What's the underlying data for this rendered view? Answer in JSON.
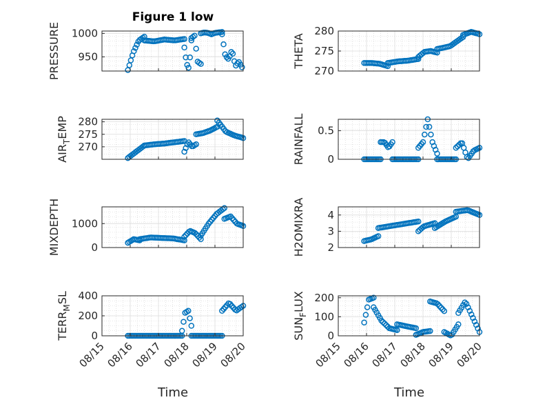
{
  "figure": {
    "title": "Figure 1 low",
    "marker_color": "#0072BD",
    "x_axis_label": "Time",
    "x_tick_labels": [
      "08/15",
      "08/16",
      "08/17",
      "08/18",
      "08/19",
      "08/20"
    ]
  },
  "chart_data": [
    {
      "type": "scatter",
      "ylabel": "PRESSURE",
      "ylim": [
        920,
        1005
      ],
      "yticks": [
        950,
        1000
      ],
      "ytick_labels": [
        "950",
        "1000"
      ],
      "x": [
        "08/15",
        "08/20"
      ],
      "series": [
        {
          "segments": [
            {
              "from": "08/15 22:00",
              "to": "08/16 12:00",
              "y": [
                922,
                960,
                985,
                993
              ]
            },
            {
              "from": "08/16 12:00",
              "to": "08/17 22:00",
              "y": [
                985,
                983,
                987,
                985,
                988
              ]
            },
            {
              "from": "08/17 22:00",
              "to": "08/18 04:00",
              "y": [
                970,
                935,
                925,
                985
              ]
            },
            {
              "from": "08/18 04:00",
              "to": "08/18 12:00",
              "y": [
                990,
                995,
                940,
                935
              ]
            },
            {
              "from": "08/18 12:00",
              "to": "08/19 06:00",
              "y": [
                1000,
                1002,
                1001,
                998,
                1001,
                1002,
                1003
              ]
            },
            {
              "from": "08/19 06:00",
              "to": "08/19 23:00",
              "y": [
                998,
                952,
                945,
                965,
                930,
                940,
                928
              ]
            }
          ]
        }
      ]
    },
    {
      "type": "scatter",
      "ylabel": "THETA",
      "ylim": [
        270,
        280
      ],
      "yticks": [
        270,
        275,
        280
      ],
      "ytick_labels": [
        "270",
        "275",
        "280"
      ],
      "series": [
        {
          "segments": [
            {
              "from": "08/15 22:00",
              "to": "08/16 18:00",
              "y": [
                272,
                272,
                271.8,
                271.2
              ]
            },
            {
              "from": "08/16 18:00",
              "to": "08/17 20:00",
              "y": [
                272,
                272.4,
                272.6,
                273
              ]
            },
            {
              "from": "08/17 20:00",
              "to": "08/18 12:00",
              "y": [
                273.5,
                274.8,
                275,
                274.6
              ]
            },
            {
              "from": "08/18 12:00",
              "to": "08/19 10:00",
              "y": [
                275.5,
                276.2,
                278.5
              ]
            },
            {
              "from": "08/19 10:00",
              "to": "08/19 23:59",
              "y": [
                279,
                279.8,
                279.2
              ]
            }
          ]
        }
      ]
    },
    {
      "type": "scatter",
      "ylabel": "AIR_TEMP",
      "ylim": [
        265,
        281
      ],
      "yticks": [
        270,
        275,
        280
      ],
      "ytick_labels": [
        "270",
        "275",
        "280"
      ],
      "series": [
        {
          "segments": [
            {
              "from": "08/15 22:00",
              "to": "08/16 12:00",
              "y": [
                265.5,
                268,
                270.5
              ]
            },
            {
              "from": "08/16 12:00",
              "to": "08/17 22:00",
              "y": [
                270.5,
                271,
                271.3,
                271.8,
                272.3
              ]
            },
            {
              "from": "08/17 22:00",
              "to": "08/18 08:00",
              "y": [
                268,
                272,
                270,
                271
              ]
            },
            {
              "from": "08/18 08:00",
              "to": "08/19 02:00",
              "y": [
                275,
                275.5,
                276.5,
                278
              ]
            },
            {
              "from": "08/19 02:00",
              "to": "08/19 23:59",
              "y": [
                280.5,
                276,
                274.5,
                273.5
              ]
            }
          ]
        }
      ]
    },
    {
      "type": "scatter",
      "ylabel": "RAINFALL",
      "ylim": [
        0,
        0.7
      ],
      "yticks": [
        0,
        0.5
      ],
      "ytick_labels": [
        "0",
        "0.5"
      ],
      "series": [
        {
          "segments": [
            {
              "from": "08/15 22:00",
              "to": "08/16 12:00",
              "y": [
                0,
                0,
                0
              ]
            },
            {
              "from": "08/16 12:00",
              "to": "08/16 22:00",
              "y": [
                0.3,
                0.3,
                0.2,
                0.3
              ]
            },
            {
              "from": "08/16 22:00",
              "to": "08/17 20:00",
              "y": [
                0,
                0,
                0,
                0
              ]
            },
            {
              "from": "08/17 20:00",
              "to": "08/18 12:00",
              "y": [
                0.2,
                0.3,
                0.7,
                0.3,
                0.1
              ]
            },
            {
              "from": "08/18 12:00",
              "to": "08/19 04:00",
              "y": [
                0,
                0,
                0,
                0
              ]
            },
            {
              "from": "08/19 04:00",
              "to": "08/19 23:59",
              "y": [
                0.2,
                0.3,
                0,
                0.15,
                0.2
              ]
            }
          ]
        }
      ]
    },
    {
      "type": "scatter",
      "ylabel": "MIXDEPTH",
      "ylim": [
        0,
        1700
      ],
      "yticks": [
        0,
        1000
      ],
      "ytick_labels": [
        "0",
        "1000"
      ],
      "series": [
        {
          "segments": [
            {
              "from": "08/15 22:00",
              "to": "08/16 08:00",
              "y": [
                200,
                350,
                300
              ]
            },
            {
              "from": "08/16 08:00",
              "to": "08/17 22:00",
              "y": [
                350,
                420,
                400,
                380,
                300
              ]
            },
            {
              "from": "08/17 22:00",
              "to": "08/18 12:00",
              "y": [
                450,
                700,
                600,
                350
              ]
            },
            {
              "from": "08/18 12:00",
              "to": "08/19 08:00",
              "y": [
                500,
                1000,
                1400,
                1650
              ]
            },
            {
              "from": "08/19 08:00",
              "to": "08/19 23:59",
              "y": [
                1200,
                1300,
                1000,
                900
              ]
            }
          ]
        }
      ]
    },
    {
      "type": "scatter",
      "ylabel": "H2OMIXRA",
      "ylim": [
        2,
        4.5
      ],
      "yticks": [
        2,
        3,
        4
      ],
      "ytick_labels": [
        "2",
        "3",
        "4"
      ],
      "series": [
        {
          "segments": [
            {
              "from": "08/15 22:00",
              "to": "08/16 10:00",
              "y": [
                2.4,
                2.5,
                2.7
              ]
            },
            {
              "from": "08/16 10:00",
              "to": "08/17 20:00",
              "y": [
                3.2,
                3.3,
                3.4,
                3.5,
                3.6
              ]
            },
            {
              "from": "08/17 20:00",
              "to": "08/18 10:00",
              "y": [
                3.0,
                3.3,
                3.4,
                3.5
              ]
            },
            {
              "from": "08/18 10:00",
              "to": "08/19 04:00",
              "y": [
                3.2,
                3.6,
                3.9
              ]
            },
            {
              "from": "08/19 04:00",
              "to": "08/19 23:59",
              "y": [
                4.2,
                4.3,
                4.0
              ]
            }
          ]
        }
      ]
    },
    {
      "type": "scatter",
      "ylabel": "TERR_MSL",
      "ylim": [
        0,
        400
      ],
      "yticks": [
        0,
        200,
        400
      ],
      "ytick_labels": [
        "0",
        "200",
        "400"
      ],
      "series": [
        {
          "segments": [
            {
              "from": "08/15 22:00",
              "to": "08/17 20:00",
              "y": [
                0,
                0,
                0,
                0,
                0
              ]
            },
            {
              "from": "08/17 20:00",
              "to": "08/18 04:00",
              "y": [
                50,
                230,
                250,
                100
              ]
            },
            {
              "from": "08/18 04:00",
              "to": "08/19 06:00",
              "y": [
                0,
                0,
                0,
                0
              ]
            },
            {
              "from": "08/19 06:00",
              "to": "08/19 23:59",
              "y": [
                250,
                330,
                250,
                300
              ]
            }
          ]
        }
      ]
    },
    {
      "type": "scatter",
      "ylabel": "SUN_FLUX",
      "ylim": [
        0,
        210
      ],
      "yticks": [
        0,
        100,
        200
      ],
      "ytick_labels": [
        "0",
        "100",
        "200"
      ],
      "series": [
        {
          "segments": [
            {
              "from": "08/15 22:00",
              "to": "08/16 06:00",
              "y": [
                70,
                190,
                200
              ]
            },
            {
              "from": "08/16 06:00",
              "to": "08/17 02:00",
              "y": [
                150,
                80,
                40,
                30
              ]
            },
            {
              "from": "08/17 02:00",
              "to": "08/17 18:00",
              "y": [
                60,
                40
              ]
            },
            {
              "from": "08/17 18:00",
              "to": "08/18 06:00",
              "y": [
                5,
                20,
                25
              ]
            },
            {
              "from": "08/18 06:00",
              "to": "08/18 18:00",
              "y": [
                180,
                170,
                130
              ]
            },
            {
              "from": "08/18 18:00",
              "to": "08/19 06:00",
              "y": [
                20,
                0,
                60
              ]
            },
            {
              "from": "08/19 06:00",
              "to": "08/19 23:59",
              "y": [
                120,
                180,
                100,
                20
              ]
            }
          ]
        }
      ]
    }
  ]
}
